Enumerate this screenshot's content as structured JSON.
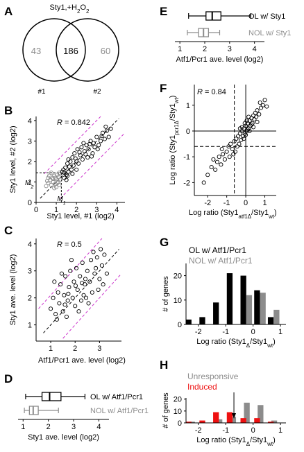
{
  "panel_letters": [
    "A",
    "B",
    "C",
    "D",
    "E",
    "F",
    "G",
    "H"
  ],
  "colors": {
    "black": "#000000",
    "gray": "#8c8c8c",
    "magenta": "#cc33cc",
    "red": "#ee1111",
    "light_gray": "#aaaaaa"
  },
  "chart_data": [
    {
      "panel": "A",
      "type": "venn",
      "title": "Sty1,+H2O2",
      "sets": [
        {
          "name": "#1"
        },
        {
          "name": "#2"
        }
      ],
      "left_only": 43,
      "both": 186,
      "right_only": 60
    },
    {
      "panel": "B",
      "type": "scatter",
      "r_label": "R = 0.842",
      "xlabel": "Sty1 level, #1 (log2)",
      "ylabel": "Sty1 level, #2 (log2)",
      "xlim": [
        0,
        4.4
      ],
      "ylim": [
        0,
        4.2
      ],
      "xticks": [
        0,
        1,
        2,
        3,
        4
      ],
      "yticks": [
        0,
        1,
        2,
        3,
        4
      ],
      "x_threshold_label": "M1",
      "y_threshold_label": "M2",
      "x_threshold": 1.25,
      "y_threshold": 1.45,
      "series": [
        {
          "name": "",
          "color": "gray",
          "points": [
            [
              0.55,
              1.05
            ],
            [
              0.6,
              0.95
            ],
            [
              0.7,
              1.1
            ],
            [
              0.75,
              0.85
            ],
            [
              0.8,
              1.2
            ],
            [
              0.85,
              1.0
            ],
            [
              0.9,
              1.3
            ],
            [
              0.95,
              0.9
            ],
            [
              1.0,
              1.15
            ],
            [
              1.0,
              0.75
            ],
            [
              1.05,
              1.35
            ],
            [
              1.1,
              1.0
            ],
            [
              1.1,
              1.25
            ],
            [
              1.15,
              0.85
            ],
            [
              1.2,
              1.1
            ],
            [
              0.65,
              1.3
            ],
            [
              0.5,
              0.8
            ],
            [
              0.9,
              0.7
            ],
            [
              1.2,
              1.4
            ],
            [
              0.75,
              1.45
            ],
            [
              0.95,
              1.2
            ],
            [
              1.15,
              1.45
            ],
            [
              0.6,
              1.2
            ],
            [
              1.05,
              0.95
            ],
            [
              0.85,
              1.15
            ]
          ]
        },
        {
          "name": "",
          "color": "black",
          "points": [
            [
              1.3,
              1.5
            ],
            [
              1.4,
              1.2
            ],
            [
              1.45,
              1.7
            ],
            [
              1.5,
              1.35
            ],
            [
              1.55,
              1.9
            ],
            [
              1.6,
              1.5
            ],
            [
              1.7,
              2.0
            ],
            [
              1.75,
              1.6
            ],
            [
              1.8,
              2.2
            ],
            [
              1.85,
              1.8
            ],
            [
              1.9,
              2.4
            ],
            [
              2.0,
              2.0
            ],
            [
              2.05,
              2.6
            ],
            [
              2.1,
              1.9
            ],
            [
              2.2,
              2.3
            ],
            [
              2.25,
              2.7
            ],
            [
              2.3,
              2.1
            ],
            [
              2.4,
              2.5
            ],
            [
              2.5,
              2.8
            ],
            [
              2.55,
              2.2
            ],
            [
              2.6,
              2.6
            ],
            [
              2.7,
              3.0
            ],
            [
              2.8,
              2.4
            ],
            [
              2.85,
              2.9
            ],
            [
              2.9,
              2.7
            ],
            [
              3.0,
              3.2
            ],
            [
              3.1,
              2.8
            ],
            [
              3.2,
              3.0
            ],
            [
              3.3,
              3.4
            ],
            [
              3.4,
              3.1
            ],
            [
              3.5,
              3.5
            ],
            [
              3.6,
              3.2
            ],
            [
              3.7,
              3.6
            ],
            [
              1.35,
              1.6
            ],
            [
              1.5,
              1.1
            ],
            [
              1.65,
              1.75
            ],
            [
              1.95,
              2.15
            ],
            [
              2.15,
              2.45
            ],
            [
              2.45,
              2.35
            ],
            [
              2.65,
              2.85
            ],
            [
              1.4,
              1.45
            ],
            [
              1.6,
              2.1
            ],
            [
              2.0,
              1.6
            ],
            [
              2.35,
              2.9
            ],
            [
              3.05,
              2.6
            ],
            [
              3.45,
              3.7
            ],
            [
              1.8,
              1.4
            ],
            [
              2.75,
              2.25
            ],
            [
              3.25,
              3.25
            ],
            [
              1.55,
              1.3
            ]
          ]
        }
      ]
    },
    {
      "panel": "C",
      "type": "scatter",
      "r_label": "R = 0.5",
      "xlabel": "Atf1/Pcr1 ave. level (log2)",
      "ylabel": "Sty1 ave. level (log2)",
      "xlim": [
        0.4,
        3.9
      ],
      "ylim": [
        0.4,
        4.2
      ],
      "xticks": [
        1,
        2,
        3
      ],
      "yticks": [
        1,
        2,
        3,
        4
      ],
      "series": [
        {
          "name": "",
          "color": "black",
          "points": [
            [
              1.0,
              1.6
            ],
            [
              1.1,
              2.0
            ],
            [
              1.2,
              1.4
            ],
            [
              1.3,
              2.2
            ],
            [
              1.35,
              1.8
            ],
            [
              1.4,
              2.5
            ],
            [
              1.5,
              1.5
            ],
            [
              1.55,
              2.1
            ],
            [
              1.6,
              2.8
            ],
            [
              1.7,
              1.9
            ],
            [
              1.75,
              2.4
            ],
            [
              1.8,
              3.0
            ],
            [
              1.9,
              2.0
            ],
            [
              1.95,
              2.6
            ],
            [
              2.0,
              1.7
            ],
            [
              2.05,
              3.1
            ],
            [
              2.1,
              2.3
            ],
            [
              2.2,
              2.8
            ],
            [
              2.25,
              1.9
            ],
            [
              2.3,
              3.3
            ],
            [
              2.4,
              2.5
            ],
            [
              2.45,
              2.0
            ],
            [
              2.5,
              3.0
            ],
            [
              2.6,
              2.6
            ],
            [
              2.65,
              3.4
            ],
            [
              2.7,
              2.2
            ],
            [
              2.8,
              2.9
            ],
            [
              2.9,
              3.5
            ],
            [
              3.0,
              2.7
            ],
            [
              3.1,
              3.2
            ],
            [
              3.2,
              3.6
            ],
            [
              3.3,
              2.9
            ],
            [
              1.25,
              1.2
            ],
            [
              1.45,
              2.9
            ],
            [
              1.65,
              1.3
            ],
            [
              1.85,
              3.4
            ],
            [
              2.15,
              1.5
            ],
            [
              2.35,
              2.1
            ],
            [
              2.55,
              1.8
            ],
            [
              2.75,
              3.7
            ],
            [
              2.95,
              2.3
            ],
            [
              3.15,
              2.5
            ],
            [
              1.15,
              2.6
            ],
            [
              1.58,
              1.75
            ],
            [
              2.02,
              2.45
            ],
            [
              2.42,
              2.7
            ],
            [
              2.85,
              3.1
            ],
            [
              3.05,
              3.8
            ],
            [
              1.72,
              2.15
            ],
            [
              2.28,
              2.55
            ]
          ]
        }
      ]
    },
    {
      "panel": "D",
      "type": "boxplot",
      "xlabel": "Sty1 ave. level (log2)",
      "xlim": [
        0.8,
        4.4
      ],
      "xticks": [
        1,
        2,
        3,
        4
      ],
      "series": [
        {
          "name": "OL w/ Atf1/Pcr1",
          "color": "black",
          "whisker_low": 1.1,
          "q1": 1.75,
          "median": 2.05,
          "q3": 2.5,
          "whisker_high": 3.45
        },
        {
          "name": "NOL w/ Atf1/Pcr1",
          "color": "gray",
          "whisker_low": 1.05,
          "q1": 1.25,
          "median": 1.4,
          "q3": 1.6,
          "whisker_high": 2.4
        }
      ]
    },
    {
      "panel": "E",
      "type": "boxplot",
      "xlabel": "Atf1/Pcr1 ave. level (log2)",
      "xlim": [
        0.8,
        4.4
      ],
      "xticks": [
        1,
        2,
        3,
        4
      ],
      "series": [
        {
          "name": "OL w/ Sty1",
          "color": "black",
          "whisker_low": 1.35,
          "q1": 2.05,
          "median": 2.3,
          "q3": 2.65,
          "whisker_high": 3.85
        },
        {
          "name": "NOL w/ Sty1",
          "color": "gray",
          "whisker_low": 1.3,
          "q1": 1.75,
          "median": 1.95,
          "q3": 2.15,
          "whisker_high": 2.6
        }
      ]
    },
    {
      "panel": "F",
      "type": "scatter",
      "r_label": "R = 0.84",
      "xlabel": "Log ratio (Sty1atf1Δ/Sty1wt)",
      "ylabel": "Log ratio (Sty1pcr1Δ/Sty1wt)",
      "xlim": [
        -2.7,
        1.6
      ],
      "ylim": [
        -2.5,
        1.8
      ],
      "xticks": [
        -2,
        -1,
        0,
        1
      ],
      "yticks": [
        -2,
        -1,
        0,
        1
      ],
      "vline_dashed": -0.6,
      "hline_dashed": -0.6,
      "series": [
        {
          "name": "",
          "color": "black",
          "points": [
            [
              -2.2,
              -2.0
            ],
            [
              -2.0,
              -1.7
            ],
            [
              -1.8,
              -1.4
            ],
            [
              -1.6,
              -1.5
            ],
            [
              -1.5,
              -1.2
            ],
            [
              -1.4,
              -1.0
            ],
            [
              -1.3,
              -1.3
            ],
            [
              -1.2,
              -0.9
            ],
            [
              -1.1,
              -1.1
            ],
            [
              -1.0,
              -0.8
            ],
            [
              -0.9,
              -0.6
            ],
            [
              -0.85,
              -1.0
            ],
            [
              -0.8,
              -0.5
            ],
            [
              -0.7,
              -0.7
            ],
            [
              -0.6,
              -0.4
            ],
            [
              -0.55,
              -0.8
            ],
            [
              -0.5,
              -0.3
            ],
            [
              -0.45,
              -0.6
            ],
            [
              -0.4,
              -0.2
            ],
            [
              -0.35,
              -0.5
            ],
            [
              -0.3,
              -0.1
            ],
            [
              -0.25,
              -0.35
            ],
            [
              -0.2,
              0.0
            ],
            [
              -0.15,
              -0.2
            ],
            [
              -0.1,
              0.1
            ],
            [
              -0.05,
              -0.1
            ],
            [
              0.0,
              0.2
            ],
            [
              0.05,
              0.0
            ],
            [
              0.1,
              0.3
            ],
            [
              0.15,
              0.1
            ],
            [
              0.2,
              0.4
            ],
            [
              0.25,
              0.2
            ],
            [
              0.3,
              0.5
            ],
            [
              0.35,
              0.3
            ],
            [
              0.4,
              0.6
            ],
            [
              0.45,
              0.45
            ],
            [
              0.5,
              0.7
            ],
            [
              0.55,
              0.55
            ],
            [
              0.6,
              0.8
            ],
            [
              0.7,
              0.65
            ],
            [
              0.8,
              0.9
            ],
            [
              0.9,
              1.0
            ],
            [
              1.0,
              1.2
            ],
            [
              1.1,
              0.95
            ],
            [
              -0.1,
              -0.3
            ],
            [
              0.0,
              -0.15
            ],
            [
              0.1,
              0.05
            ],
            [
              -0.2,
              0.15
            ],
            [
              0.2,
              0.0
            ],
            [
              -0.05,
              0.3
            ],
            [
              0.05,
              0.4
            ],
            [
              0.15,
              0.55
            ],
            [
              -1.7,
              -1.1
            ],
            [
              -1.25,
              -0.7
            ],
            [
              -0.65,
              -0.9
            ],
            [
              0.3,
              0.25
            ],
            [
              0.6,
              0.35
            ],
            [
              -0.3,
              0.1
            ],
            [
              0.75,
              1.1
            ],
            [
              0.4,
              0.15
            ]
          ]
        }
      ]
    },
    {
      "panel": "G",
      "type": "bar",
      "xlabel": "Log ratio (Sty1Δ/Sty1wt)",
      "ylabel": "# of genes",
      "xlim": [
        -2.45,
        1.2
      ],
      "ylim": [
        0,
        25
      ],
      "xticks": [
        -2,
        -1,
        0,
        1
      ],
      "yticks": [
        0,
        10,
        20
      ],
      "bin_centers": [
        -2.25,
        -1.75,
        -1.25,
        -0.75,
        -0.25,
        0.25,
        0.75
      ],
      "series": [
        {
          "name": "OL w/ Atf1/Pcr1",
          "color": "black",
          "values": [
            2,
            3,
            9,
            21,
            20,
            14,
            3
          ]
        },
        {
          "name": "NOL w/ Atf1/Pcr1",
          "color": "gray",
          "values": [
            0,
            0,
            0,
            0,
            12,
            13,
            6
          ]
        }
      ]
    },
    {
      "panel": "H",
      "type": "bar",
      "xlabel": "Log ratio (Sty1Δ/Sty1wt)",
      "ylabel": "# of genes",
      "xlim": [
        -2.45,
        1.2
      ],
      "ylim": [
        0,
        21
      ],
      "xticks": [
        -2,
        -1,
        0,
        1
      ],
      "yticks": [
        0,
        10,
        20
      ],
      "bin_centers": [
        -2.25,
        -1.75,
        -1.25,
        -0.75,
        -0.25,
        0.25,
        0.75
      ],
      "arrow_x": -0.7,
      "series": [
        {
          "name": "Unresponsive",
          "color": "gray",
          "values": [
            1,
            0,
            3,
            5,
            17,
            15,
            2
          ]
        },
        {
          "name": "Induced",
          "color": "red",
          "values": [
            1,
            2,
            9,
            9,
            4,
            4,
            1
          ]
        }
      ]
    }
  ]
}
